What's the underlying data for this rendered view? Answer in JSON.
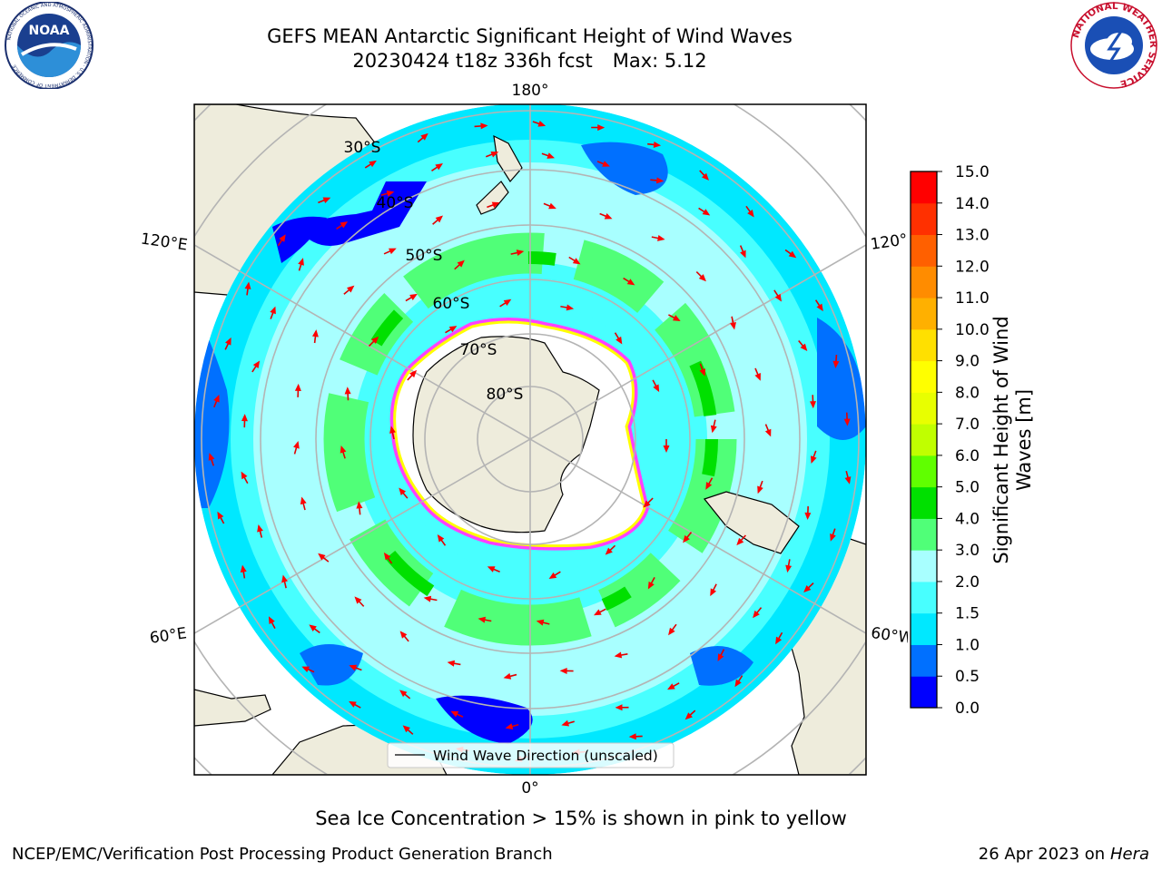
{
  "header": {
    "title_line1": "GEFS MEAN Antarctic Significant Height of Wind Waves",
    "title_line2_run": "20230424 t18z 336h fcst",
    "title_line2_max": "Max: 5.12"
  },
  "logos": {
    "left": {
      "name": "noaa-logo",
      "text": "NOAA",
      "ring_text": "NATIONAL OCEANIC AND ATMOSPHERIC ADMINISTRATION · U.S. DEPARTMENT OF COMMERCE"
    },
    "right": {
      "name": "nws-logo",
      "ring_text": "NATIONAL WEATHER SERVICE"
    }
  },
  "map": {
    "projection": "south-polar-stereographic",
    "lon_labels": [
      "180°",
      "120°E",
      "120°",
      "60°E",
      "60°W",
      "0°"
    ],
    "lat_labels": [
      "30°S",
      "40°S",
      "50°S",
      "60°S",
      "70°S",
      "80°S"
    ],
    "legend": "Wind Wave Direction (unscaled)",
    "colors": {
      "land": "#eeecdc",
      "ice_sheet": "#ffffff",
      "grid": "#b4b4b4",
      "arrow": "#ff0000",
      "ice_edge": [
        "#ff40ff",
        "#ffff00"
      ]
    }
  },
  "colorbar": {
    "label": "Significant Height of Wind Waves [m]",
    "ticks": [
      "0.0",
      "0.5",
      "1.0",
      "1.5",
      "2.0",
      "3.0",
      "4.0",
      "5.0",
      "6.0",
      "7.0",
      "8.0",
      "9.0",
      "10.0",
      "11.0",
      "12.0",
      "13.0",
      "14.0",
      "15.0"
    ],
    "colors": [
      "#0000ff",
      "#0070ff",
      "#00e8ff",
      "#48ffff",
      "#a8ffff",
      "#50ff78",
      "#00e000",
      "#60ff00",
      "#c0ff00",
      "#e8ff00",
      "#ffff00",
      "#ffe000",
      "#ffb000",
      "#ff8c00",
      "#ff6000",
      "#ff3000",
      "#ff0000"
    ]
  },
  "footer": {
    "note": "Sea Ice Concentration > 15% is shown in pink to yellow",
    "left": "NCEP/EMC/Verification Post Processing Product Generation Branch",
    "right_date": "26 Apr 2023 on",
    "right_host": "Hera"
  }
}
